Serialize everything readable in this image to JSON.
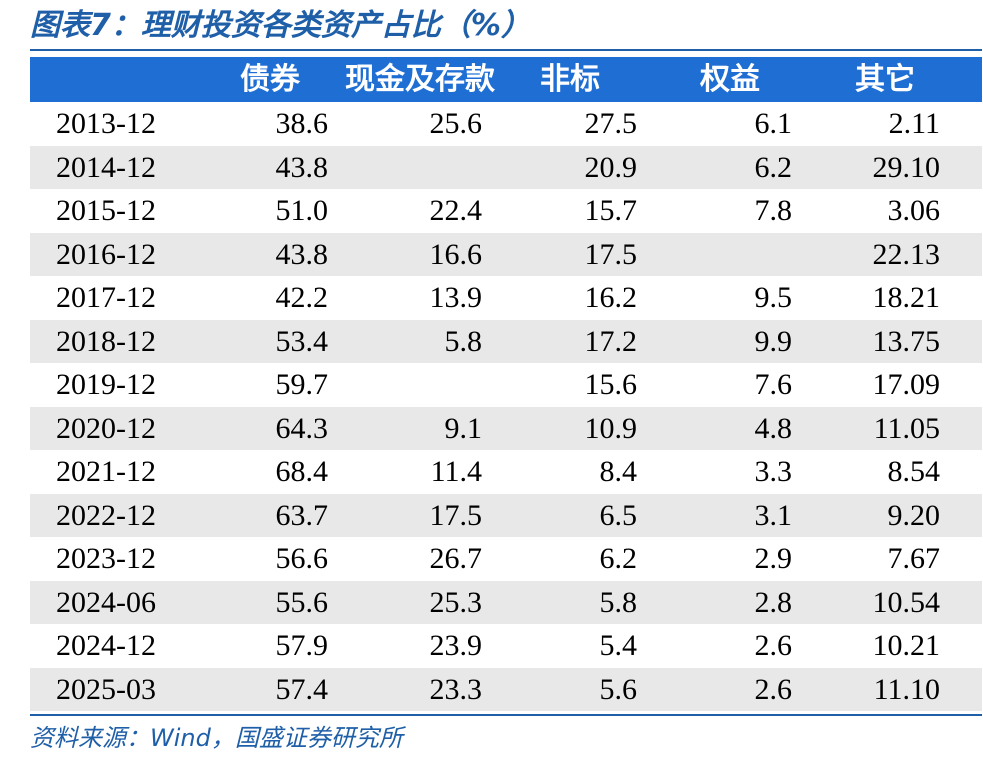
{
  "chart_data": {
    "type": "table",
    "title": "图表7：理财投资各类资产占比（%）",
    "columns": [
      "",
      "债券",
      "现金及存款",
      "非标",
      "权益",
      "其它"
    ],
    "rows": [
      {
        "date": "2013-12",
        "values": [
          "38.6",
          "25.6",
          "27.5",
          "6.1",
          "2.11"
        ]
      },
      {
        "date": "2014-12",
        "values": [
          "43.8",
          "",
          "20.9",
          "6.2",
          "29.10"
        ]
      },
      {
        "date": "2015-12",
        "values": [
          "51.0",
          "22.4",
          "15.7",
          "7.8",
          "3.06"
        ]
      },
      {
        "date": "2016-12",
        "values": [
          "43.8",
          "16.6",
          "17.5",
          "",
          "22.13"
        ]
      },
      {
        "date": "2017-12",
        "values": [
          "42.2",
          "13.9",
          "16.2",
          "9.5",
          "18.21"
        ]
      },
      {
        "date": "2018-12",
        "values": [
          "53.4",
          "5.8",
          "17.2",
          "9.9",
          "13.75"
        ]
      },
      {
        "date": "2019-12",
        "values": [
          "59.7",
          "",
          "15.6",
          "7.6",
          "17.09"
        ]
      },
      {
        "date": "2020-12",
        "values": [
          "64.3",
          "9.1",
          "10.9",
          "4.8",
          "11.05"
        ]
      },
      {
        "date": "2021-12",
        "values": [
          "68.4",
          "11.4",
          "8.4",
          "3.3",
          "8.54"
        ]
      },
      {
        "date": "2022-12",
        "values": [
          "63.7",
          "17.5",
          "6.5",
          "3.1",
          "9.20"
        ]
      },
      {
        "date": "2023-12",
        "values": [
          "56.6",
          "26.7",
          "6.2",
          "2.9",
          "7.67"
        ]
      },
      {
        "date": "2024-06",
        "values": [
          "55.6",
          "25.3",
          "5.8",
          "2.8",
          "10.54"
        ]
      },
      {
        "date": "2024-12",
        "values": [
          "57.9",
          "23.9",
          "5.4",
          "2.6",
          "10.21"
        ]
      },
      {
        "date": "2025-03",
        "values": [
          "57.4",
          "23.3",
          "5.6",
          "2.6",
          "11.10"
        ]
      }
    ],
    "source": "资料来源：Wind，国盛证券研究所"
  },
  "colors": {
    "header_bg": "#1f6ed4",
    "accent": "#1f5fa8",
    "stripe": "#e8e8e8"
  }
}
